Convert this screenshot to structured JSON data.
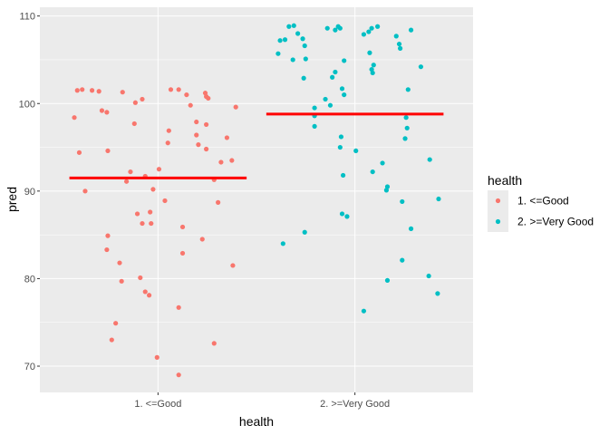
{
  "chart_data": {
    "type": "scatter",
    "xlabel": "health",
    "ylabel": "pred",
    "categories": [
      "1. <=Good",
      "2. >=Very Good"
    ],
    "ylim": [
      67,
      111
    ],
    "yticks": [
      70,
      80,
      90,
      100,
      110
    ],
    "grid": true,
    "legend": {
      "title": "health",
      "placement": "right"
    },
    "series": [
      {
        "name": "1. <=Good",
        "color": "#F8766D",
        "category": "1. <=Good",
        "mean": 91.5,
        "points": [
          {
            "x": -0.41,
            "y": 101.5
          },
          {
            "x": -0.385,
            "y": 101.6
          },
          {
            "x": -0.335,
            "y": 101.5
          },
          {
            "x": -0.3,
            "y": 101.4
          },
          {
            "x": -0.18,
            "y": 101.3
          },
          {
            "x": 0.065,
            "y": 101.6
          },
          {
            "x": 0.105,
            "y": 101.6
          },
          {
            "x": 0.145,
            "y": 101.0
          },
          {
            "x": 0.24,
            "y": 101.2
          },
          {
            "x": 0.245,
            "y": 100.8
          },
          {
            "x": 0.255,
            "y": 100.6
          },
          {
            "x": -0.08,
            "y": 100.5
          },
          {
            "x": -0.115,
            "y": 100.1
          },
          {
            "x": 0.165,
            "y": 99.8
          },
          {
            "x": 0.395,
            "y": 99.6
          },
          {
            "x": -0.285,
            "y": 99.2
          },
          {
            "x": -0.26,
            "y": 99.0
          },
          {
            "x": -0.425,
            "y": 98.4
          },
          {
            "x": -0.12,
            "y": 97.7
          },
          {
            "x": 0.195,
            "y": 97.9
          },
          {
            "x": 0.245,
            "y": 97.6
          },
          {
            "x": 0.055,
            "y": 96.9
          },
          {
            "x": 0.195,
            "y": 96.4
          },
          {
            "x": 0.35,
            "y": 96.1
          },
          {
            "x": 0.05,
            "y": 95.5
          },
          {
            "x": 0.205,
            "y": 95.3
          },
          {
            "x": 0.245,
            "y": 94.8
          },
          {
            "x": -0.255,
            "y": 94.6
          },
          {
            "x": -0.4,
            "y": 94.4
          },
          {
            "x": 0.32,
            "y": 93.3
          },
          {
            "x": 0.375,
            "y": 93.5
          },
          {
            "x": -0.14,
            "y": 92.2
          },
          {
            "x": 0.005,
            "y": 92.5
          },
          {
            "x": -0.16,
            "y": 91.1
          },
          {
            "x": -0.065,
            "y": 91.7
          },
          {
            "x": 0.285,
            "y": 91.3
          },
          {
            "x": -0.025,
            "y": 90.2
          },
          {
            "x": -0.37,
            "y": 90.0
          },
          {
            "x": 0.035,
            "y": 88.9
          },
          {
            "x": 0.305,
            "y": 88.7
          },
          {
            "x": -0.105,
            "y": 87.4
          },
          {
            "x": -0.04,
            "y": 87.6
          },
          {
            "x": -0.035,
            "y": 86.3
          },
          {
            "x": -0.08,
            "y": 86.3
          },
          {
            "x": 0.125,
            "y": 85.9
          },
          {
            "x": 0.225,
            "y": 84.5
          },
          {
            "x": -0.255,
            "y": 84.9
          },
          {
            "x": -0.26,
            "y": 83.3
          },
          {
            "x": 0.125,
            "y": 82.9
          },
          {
            "x": -0.195,
            "y": 81.8
          },
          {
            "x": 0.38,
            "y": 81.5
          },
          {
            "x": -0.09,
            "y": 80.1
          },
          {
            "x": -0.185,
            "y": 79.7
          },
          {
            "x": -0.065,
            "y": 78.5
          },
          {
            "x": -0.045,
            "y": 78.1
          },
          {
            "x": 0.105,
            "y": 76.7
          },
          {
            "x": -0.215,
            "y": 74.9
          },
          {
            "x": -0.235,
            "y": 73.0
          },
          {
            "x": 0.285,
            "y": 72.6
          },
          {
            "x": -0.005,
            "y": 71.0
          },
          {
            "x": 0.105,
            "y": 69.0
          }
        ]
      },
      {
        "name": "2. >=Very Good",
        "color": "#00BFC4",
        "category": "2. >=Very Good",
        "mean": 98.8,
        "points": [
          {
            "x": -0.335,
            "y": 108.8
          },
          {
            "x": -0.31,
            "y": 108.9
          },
          {
            "x": -0.14,
            "y": 108.6
          },
          {
            "x": -0.085,
            "y": 108.8
          },
          {
            "x": -0.075,
            "y": 108.6
          },
          {
            "x": 0.07,
            "y": 108.2
          },
          {
            "x": 0.085,
            "y": 108.6
          },
          {
            "x": 0.115,
            "y": 108.8
          },
          {
            "x": 0.285,
            "y": 108.4
          },
          {
            "x": -0.29,
            "y": 108.0
          },
          {
            "x": -0.1,
            "y": 108.4
          },
          {
            "x": 0.045,
            "y": 107.9
          },
          {
            "x": -0.38,
            "y": 107.2
          },
          {
            "x": -0.355,
            "y": 107.3
          },
          {
            "x": -0.265,
            "y": 107.4
          },
          {
            "x": 0.21,
            "y": 107.7
          },
          {
            "x": 0.225,
            "y": 106.8
          },
          {
            "x": -0.255,
            "y": 106.6
          },
          {
            "x": 0.23,
            "y": 106.3
          },
          {
            "x": -0.39,
            "y": 105.7
          },
          {
            "x": 0.075,
            "y": 105.8
          },
          {
            "x": -0.25,
            "y": 105.1
          },
          {
            "x": -0.315,
            "y": 105.0
          },
          {
            "x": -0.055,
            "y": 104.9
          },
          {
            "x": 0.095,
            "y": 104.4
          },
          {
            "x": 0.335,
            "y": 104.2
          },
          {
            "x": 0.085,
            "y": 103.9
          },
          {
            "x": -0.1,
            "y": 103.6
          },
          {
            "x": 0.09,
            "y": 103.5
          },
          {
            "x": -0.115,
            "y": 103.0
          },
          {
            "x": -0.26,
            "y": 102.9
          },
          {
            "x": -0.065,
            "y": 101.7
          },
          {
            "x": 0.27,
            "y": 101.6
          },
          {
            "x": -0.055,
            "y": 101.0
          },
          {
            "x": -0.15,
            "y": 100.5
          },
          {
            "x": -0.125,
            "y": 99.8
          },
          {
            "x": -0.205,
            "y": 99.5
          },
          {
            "x": -0.205,
            "y": 98.6
          },
          {
            "x": -0.205,
            "y": 97.4
          },
          {
            "x": 0.26,
            "y": 98.4
          },
          {
            "x": 0.265,
            "y": 97.2
          },
          {
            "x": 0.255,
            "y": 96.0
          },
          {
            "x": -0.07,
            "y": 96.2
          },
          {
            "x": -0.075,
            "y": 95.0
          },
          {
            "x": 0.005,
            "y": 94.6
          },
          {
            "x": 0.38,
            "y": 93.6
          },
          {
            "x": 0.14,
            "y": 93.2
          },
          {
            "x": 0.09,
            "y": 92.2
          },
          {
            "x": -0.06,
            "y": 91.8
          },
          {
            "x": 0.165,
            "y": 90.5
          },
          {
            "x": 0.16,
            "y": 90.1
          },
          {
            "x": 0.425,
            "y": 89.1
          },
          {
            "x": 0.24,
            "y": 88.8
          },
          {
            "x": -0.065,
            "y": 87.4
          },
          {
            "x": -0.04,
            "y": 87.1
          },
          {
            "x": 0.285,
            "y": 85.7
          },
          {
            "x": -0.255,
            "y": 85.3
          },
          {
            "x": -0.365,
            "y": 84.0
          },
          {
            "x": 0.24,
            "y": 82.1
          },
          {
            "x": 0.375,
            "y": 80.3
          },
          {
            "x": 0.165,
            "y": 79.8
          },
          {
            "x": 0.42,
            "y": 78.3
          },
          {
            "x": 0.045,
            "y": 76.3
          }
        ]
      }
    ]
  }
}
